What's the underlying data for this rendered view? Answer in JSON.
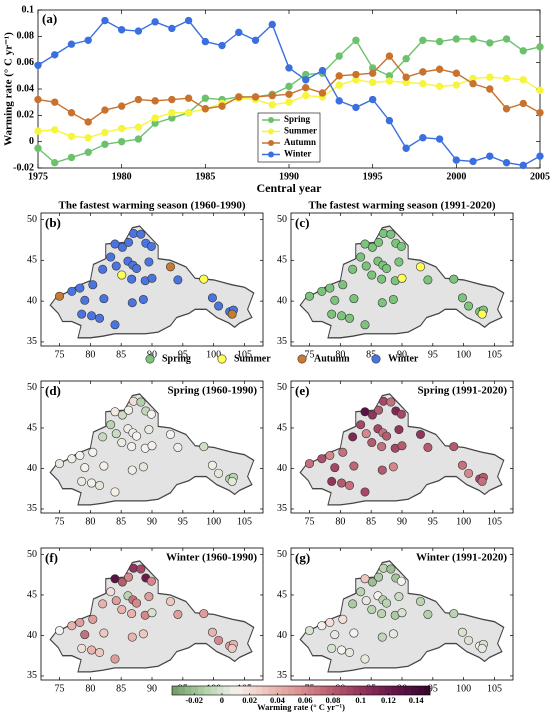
{
  "chart_data": [
    {
      "type": "line",
      "label": "(a)",
      "xlabel": "Central year",
      "ylabel": "Warming rate (° C yr⁻¹)",
      "x": [
        1975,
        1976,
        1977,
        1978,
        1979,
        1980,
        1981,
        1982,
        1983,
        1984,
        1985,
        1986,
        1987,
        1988,
        1989,
        1990,
        1991,
        1992,
        1993,
        1994,
        1995,
        1996,
        1997,
        1998,
        1999,
        2000,
        2001,
        2002,
        2003,
        2004,
        2005
      ],
      "xlim": [
        1975,
        2005
      ],
      "xticks": [
        1975,
        1980,
        1985,
        1990,
        1995,
        2000,
        2005
      ],
      "ylim": [
        -0.02,
        0.1
      ],
      "yticks": [
        -0.02,
        0,
        0.02,
        0.04,
        0.06,
        0.08,
        0.1
      ],
      "series": [
        {
          "name": "Spring",
          "color": "#6cc26c",
          "values": [
            -0.005,
            -0.016,
            -0.012,
            -0.008,
            -0.002,
            0.0,
            0.002,
            0.014,
            0.018,
            0.022,
            0.033,
            0.032,
            0.034,
            0.034,
            0.036,
            0.042,
            0.051,
            0.052,
            0.065,
            0.077,
            0.056,
            0.05,
            0.063,
            0.077,
            0.076,
            0.078,
            0.078,
            0.075,
            0.078,
            0.069,
            0.072
          ]
        },
        {
          "name": "Summer",
          "color": "#f5f53c",
          "values": [
            0.008,
            0.009,
            0.004,
            0.003,
            0.007,
            0.01,
            0.011,
            0.018,
            0.022,
            0.022,
            0.025,
            0.029,
            0.033,
            0.032,
            0.028,
            0.03,
            0.035,
            0.034,
            0.043,
            0.047,
            0.045,
            0.046,
            0.045,
            0.044,
            0.042,
            0.043,
            0.048,
            0.049,
            0.048,
            0.047,
            0.039
          ]
        },
        {
          "name": "Autumn",
          "color": "#c8722e",
          "values": [
            0.032,
            0.03,
            0.022,
            0.015,
            0.024,
            0.027,
            0.032,
            0.031,
            0.032,
            0.033,
            0.025,
            0.027,
            0.034,
            0.034,
            0.035,
            0.036,
            0.041,
            0.037,
            0.05,
            0.051,
            0.052,
            0.065,
            0.049,
            0.053,
            0.055,
            0.052,
            0.044,
            0.04,
            0.025,
            0.029,
            0.022
          ]
        },
        {
          "name": "Winter",
          "color": "#3b6fe0",
          "values": [
            0.058,
            0.066,
            0.074,
            0.077,
            0.092,
            0.085,
            0.084,
            0.091,
            0.086,
            0.092,
            0.076,
            0.073,
            0.083,
            0.077,
            0.089,
            0.056,
            0.047,
            0.054,
            0.031,
            0.026,
            0.032,
            0.016,
            -0.005,
            0.003,
            0.002,
            -0.014,
            -0.015,
            -0.011,
            -0.016,
            -0.018,
            -0.011
          ]
        }
      ]
    },
    {
      "type": "map",
      "label": "(b)",
      "title": "The fastest warming season (1960-1990)",
      "title_position": "above",
      "xlim": [
        72,
        108
      ],
      "xticks": [
        75,
        80,
        85,
        90,
        95,
        100,
        105
      ],
      "ylim": [
        34.5,
        50.8
      ],
      "yticks": [
        35,
        40,
        45,
        50
      ],
      "values": [
        "Autumn",
        "Winter",
        "Winter",
        "Winter",
        "Winter",
        "Winter",
        "Winter",
        "Winter",
        "Winter",
        "Winter",
        "Winter",
        "Winter",
        "Winter",
        "Winter",
        "Winter",
        "Winter",
        "Winter",
        "Winter",
        "Winter",
        "Summer",
        "Winter",
        "Winter",
        "Winter",
        "Winter",
        "Winter",
        "Winter",
        "Winter",
        "Winter",
        "Winter",
        "Winter",
        "Autumn",
        "Winter",
        "Summer",
        "Winter",
        "Winter",
        "Winter",
        "Winter",
        "Autumn"
      ]
    },
    {
      "type": "map",
      "label": "(c)",
      "title": "The fastest warming season (1991-2020)",
      "title_position": "above",
      "xlim": [
        72,
        108
      ],
      "xticks": [
        75,
        80,
        85,
        90,
        95,
        100,
        105
      ],
      "ylim": [
        34.5,
        50.8
      ],
      "yticks": [
        35,
        40,
        45,
        50
      ],
      "values": [
        "Spring",
        "Spring",
        "Spring",
        "Spring",
        "Spring",
        "Spring",
        "Spring",
        "Spring",
        "Spring",
        "Spring",
        "Spring",
        "Spring",
        "Spring",
        "Spring",
        "Spring",
        "Spring",
        "Spring",
        "Spring",
        "Spring",
        "Spring",
        "Spring",
        "Spring",
        "Spring",
        "Spring",
        "Spring",
        "Spring",
        "Summer",
        "Spring",
        "Spring",
        "Spring",
        "Summer",
        "Spring",
        "Spring",
        "Spring",
        "Spring",
        "Spring",
        "Spring",
        "Summer"
      ]
    },
    {
      "type": "map",
      "label": "(d)",
      "title": "Spring (1960-1990)",
      "title_position": "inside",
      "xlim": [
        72,
        108
      ],
      "xticks": [
        75,
        80,
        85,
        90,
        95,
        100,
        105
      ],
      "ylim": [
        34.5,
        50.8
      ],
      "yticks": [
        35,
        40,
        45,
        50
      ],
      "values": [
        0.005,
        0.008,
        0.01,
        0.012,
        0.01,
        0.006,
        0.008,
        0.004,
        0.012,
        -0.006,
        -0.01,
        0.015,
        -0.004,
        0.012,
        0.02,
        -0.012,
        -0.008,
        0.01,
        -0.005,
        0.006,
        0.008,
        0.015,
        0.01,
        0.006,
        0.012,
        0.01,
        0.012,
        0.004,
        0.008,
        0.012,
        0.01,
        0.014,
        -0.002,
        0.008,
        0.004,
        -0.012,
        -0.01,
        0.003
      ]
    },
    {
      "type": "map",
      "label": "(e)",
      "title": "Spring (1991-2020)",
      "title_position": "inside",
      "xlim": [
        72,
        108
      ],
      "xticks": [
        75,
        80,
        85,
        90,
        95,
        100,
        105
      ],
      "ylim": [
        34.5,
        50.8
      ],
      "yticks": [
        35,
        40,
        45,
        50
      ],
      "values": [
        0.07,
        0.085,
        0.06,
        0.09,
        0.07,
        0.1,
        0.08,
        0.07,
        0.075,
        0.11,
        0.09,
        0.13,
        0.1,
        0.08,
        0.09,
        0.07,
        0.11,
        0.09,
        0.06,
        0.08,
        0.09,
        0.07,
        0.08,
        0.1,
        0.07,
        0.09,
        0.08,
        0.06,
        0.08,
        0.09,
        0.1,
        0.08,
        0.08,
        0.07,
        0.06,
        0.09,
        0.08,
        0.07
      ]
    },
    {
      "type": "map",
      "label": "(f)",
      "title": "Winter (1960-1990)",
      "title_position": "inside",
      "xlim": [
        72,
        108
      ],
      "xticks": [
        75,
        80,
        85,
        90,
        95,
        100,
        105
      ],
      "ylim": [
        34.5,
        50.8
      ],
      "yticks": [
        35,
        40,
        45,
        50
      ],
      "values": [
        0.01,
        0.04,
        0.05,
        0.07,
        0.05,
        0.02,
        0.04,
        0.03,
        0.03,
        0.04,
        0.02,
        0.13,
        0.08,
        0.06,
        0.1,
        0.09,
        0.12,
        0.06,
        0.05,
        0.04,
        -0.01,
        0.07,
        0.06,
        0.05,
        0.04,
        0.06,
        0.0,
        0.03,
        0.04,
        0.05,
        0.03,
        0.05,
        0.05,
        0.04,
        0.06,
        0.05,
        0.04,
        0.03
      ]
    },
    {
      "type": "map",
      "label": "(g)",
      "title": "Winter (1991-2020)",
      "title_position": "inside",
      "xlim": [
        72,
        108
      ],
      "xticks": [
        75,
        80,
        85,
        90,
        95,
        100,
        105
      ],
      "ylim": [
        34.5,
        50.8
      ],
      "yticks": [
        35,
        40,
        45,
        50
      ],
      "values": [
        0.0,
        0.01,
        0.02,
        0.005,
        0.02,
        0.0,
        0.01,
        0.005,
        0.01,
        -0.015,
        -0.01,
        0.03,
        -0.02,
        -0.015,
        -0.01,
        -0.02,
        -0.018,
        0.01,
        0.005,
        -0.01,
        0.01,
        -0.012,
        -0.01,
        -0.005,
        -0.01,
        -0.015,
        0.0,
        0.005,
        -0.008,
        0.005,
        -0.01,
        -0.012,
        -0.01,
        0.0,
        0.0,
        0.01,
        0.0,
        0.005
      ]
    }
  ],
  "stations": {
    "lon": [
      75.0,
      77.0,
      78.3,
      79.1,
      80.4,
      78.6,
      80.2,
      81.5,
      82.2,
      82.0,
      83.3,
      84.0,
      85.2,
      86.2,
      87.0,
      88.2,
      89.0,
      89.9,
      84.2,
      85.1,
      86.1,
      86.9,
      87.5,
      89.5,
      86.7,
      88.9,
      90.0,
      88.6,
      86.8,
      84.0,
      93.0,
      94.2,
      98.4,
      99.8,
      100.8,
      102.6,
      103.2,
      103.0
    ],
    "lat": [
      40.6,
      41.2,
      41.6,
      40.1,
      42.0,
      38.4,
      38.2,
      37.9,
      40.3,
      43.9,
      45.4,
      47.0,
      46.6,
      47.2,
      48.3,
      48.2,
      47.1,
      46.7,
      44.3,
      43.2,
      44.9,
      44.4,
      44.0,
      44.8,
      42.7,
      42.5,
      42.8,
      40.2,
      39.8,
      37.1,
      44.2,
      42.6,
      42.7,
      40.4,
      39.4,
      38.7,
      38.9,
      38.4
    ]
  },
  "season_legend": [
    {
      "name": "Spring",
      "color": "#7cc47c"
    },
    {
      "name": "Summer",
      "color": "#ffff55"
    },
    {
      "name": "Autumn",
      "color": "#c87a30"
    },
    {
      "name": "Winter",
      "color": "#4a74e0"
    }
  ],
  "colorbar": {
    "label": "Warming rate (° C yr⁻¹)",
    "lim": [
      -0.036,
      0.15
    ],
    "ticks": [
      -0.02,
      0,
      0.02,
      0.04,
      0.06,
      0.08,
      0.1,
      0.12,
      0.14
    ],
    "colors": [
      "#6e9a66",
      "#b2cfa9",
      "#f6f2ee",
      "#ecc0b6",
      "#d98f8f",
      "#b55a6e",
      "#8c2f58",
      "#5e1447",
      "#34062c"
    ]
  }
}
